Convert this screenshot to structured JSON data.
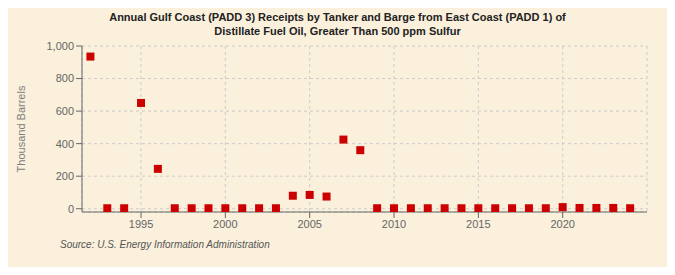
{
  "chart_data": {
    "type": "scatter",
    "title": "Annual Gulf Coast (PADD 3) Receipts by Tanker and Barge from East Coast (PADD 1) of",
    "subtitle": "Distillate Fuel Oil, Greater Than 500 ppm Sulfur",
    "y_label": "Thousand Barrels",
    "annotations": [
      "Source: U.S. Energy Information Administration"
    ],
    "x": [
      1992,
      1993,
      1994,
      1995,
      1996,
      1997,
      1998,
      1999,
      2000,
      2001,
      2002,
      2003,
      2004,
      2005,
      2006,
      2007,
      2008,
      2009,
      2010,
      2011,
      2012,
      2013,
      2014,
      2015,
      2016,
      2017,
      2018,
      2019,
      2020,
      2021,
      2022,
      2023,
      2024
    ],
    "values": [
      935,
      3,
      3,
      650,
      245,
      3,
      3,
      3,
      3,
      3,
      3,
      3,
      80,
      85,
      75,
      425,
      360,
      3,
      3,
      3,
      3,
      3,
      3,
      3,
      3,
      3,
      3,
      3,
      10,
      5,
      5,
      5,
      3
    ],
    "color": "#cc0000",
    "marker": "square",
    "xlim": [
      1991.5,
      2025
    ],
    "xticks": [
      1995,
      2000,
      2005,
      2010,
      2015,
      2020
    ],
    "ylim": [
      -20,
      1000
    ],
    "yticks": [
      0,
      200,
      400,
      600,
      800,
      {
        "value": 1000,
        "label": "1,000"
      }
    ],
    "grid": true
  }
}
